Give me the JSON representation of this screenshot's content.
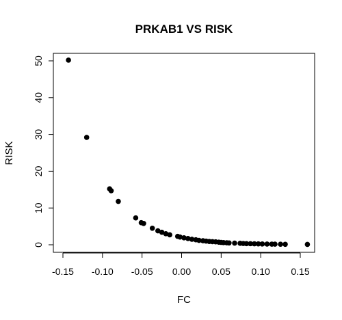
{
  "chart_data": {
    "type": "scatter",
    "title": "PRKAB1 VS RISK",
    "xlabel": "FC",
    "ylabel": "RISK",
    "xlim": [
      -0.15,
      0.16
    ],
    "ylim": [
      0,
      50
    ],
    "x_ticks": [
      -0.15,
      -0.1,
      -0.05,
      0.0,
      0.05,
      0.1,
      0.15
    ],
    "x_tick_labels": [
      "-0.15",
      "-0.10",
      "-0.05",
      "0.00",
      "0.05",
      "0.10",
      "0.15"
    ],
    "y_ticks": [
      0,
      10,
      20,
      30,
      40,
      50
    ],
    "y_tick_labels": [
      "0",
      "10",
      "20",
      "30",
      "40",
      "50"
    ],
    "grid": false,
    "legend": "none",
    "point_color": "#000000",
    "points": [
      {
        "x": -0.143,
        "y": 50.2
      },
      {
        "x": -0.12,
        "y": 29.2
      },
      {
        "x": -0.091,
        "y": 15.2
      },
      {
        "x": -0.089,
        "y": 14.7
      },
      {
        "x": -0.08,
        "y": 11.8
      },
      {
        "x": -0.058,
        "y": 7.3
      },
      {
        "x": -0.051,
        "y": 6.0
      },
      {
        "x": -0.048,
        "y": 5.8
      },
      {
        "x": -0.037,
        "y": 4.5
      },
      {
        "x": -0.03,
        "y": 3.8
      },
      {
        "x": -0.025,
        "y": 3.4
      },
      {
        "x": -0.02,
        "y": 3.0
      },
      {
        "x": -0.015,
        "y": 2.7
      },
      {
        "x": -0.005,
        "y": 2.3
      },
      {
        "x": -0.002,
        "y": 2.1
      },
      {
        "x": 0.003,
        "y": 1.9
      },
      {
        "x": 0.008,
        "y": 1.7
      },
      {
        "x": 0.013,
        "y": 1.5
      },
      {
        "x": 0.018,
        "y": 1.35
      },
      {
        "x": 0.022,
        "y": 1.2
      },
      {
        "x": 0.027,
        "y": 1.1
      },
      {
        "x": 0.031,
        "y": 1.0
      },
      {
        "x": 0.035,
        "y": 0.9
      },
      {
        "x": 0.039,
        "y": 0.85
      },
      {
        "x": 0.043,
        "y": 0.8
      },
      {
        "x": 0.047,
        "y": 0.7
      },
      {
        "x": 0.05,
        "y": 0.65
      },
      {
        "x": 0.053,
        "y": 0.6
      },
      {
        "x": 0.057,
        "y": 0.55
      },
      {
        "x": 0.06,
        "y": 0.5
      },
      {
        "x": 0.067,
        "y": 0.45
      },
      {
        "x": 0.074,
        "y": 0.4
      },
      {
        "x": 0.078,
        "y": 0.35
      },
      {
        "x": 0.082,
        "y": 0.32
      },
      {
        "x": 0.087,
        "y": 0.3
      },
      {
        "x": 0.092,
        "y": 0.27
      },
      {
        "x": 0.097,
        "y": 0.25
      },
      {
        "x": 0.102,
        "y": 0.22
      },
      {
        "x": 0.108,
        "y": 0.2
      },
      {
        "x": 0.114,
        "y": 0.18
      },
      {
        "x": 0.118,
        "y": 0.17
      },
      {
        "x": 0.125,
        "y": 0.15
      },
      {
        "x": 0.131,
        "y": 0.13
      },
      {
        "x": 0.159,
        "y": 0.1
      }
    ]
  }
}
